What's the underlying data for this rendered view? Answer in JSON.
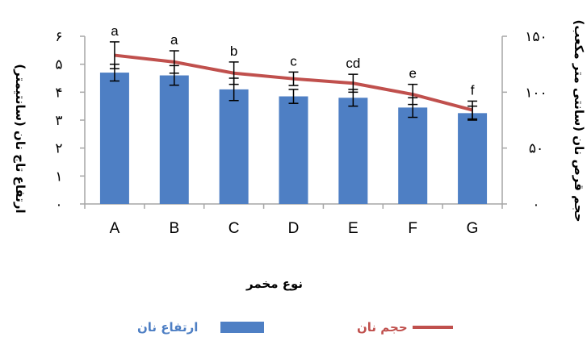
{
  "chart_data": {
    "type": "bar",
    "categories": [
      "A",
      "B",
      "C",
      "D",
      "E",
      "F",
      "G"
    ],
    "series": [
      {
        "name": "ارتفاع نان",
        "type": "bar",
        "axis": "left",
        "color": "#4E7FC4",
        "values": [
          4.7,
          4.6,
          4.1,
          3.85,
          3.8,
          3.45,
          3.25
        ],
        "errors": [
          0.3,
          0.35,
          0.4,
          0.25,
          0.3,
          0.35,
          0.25
        ]
      },
      {
        "name": "حجم نان",
        "type": "line",
        "axis": "right",
        "color": "#C0504D",
        "values": [
          133,
          127,
          117,
          112,
          108,
          98,
          84
        ],
        "errors": [
          12,
          10,
          10,
          6,
          8,
          9,
          8
        ]
      }
    ],
    "significance_letters": [
      "a",
      "a",
      "b",
      "c",
      "cd",
      "e",
      "f"
    ],
    "xlabel": "نوع مخمر",
    "ylabel_left": "ارتفاع تاج نان (سانتیمتر)",
    "ylabel_right": "حجم قرص نان (سانتی متر مکعب)",
    "left_axis": {
      "ylim": [
        0,
        6
      ],
      "ticks": [
        "۰",
        "۱",
        "۲",
        "۳",
        "۴",
        "۵",
        "۶"
      ]
    },
    "right_axis": {
      "ylim": [
        0,
        150
      ],
      "ticks": [
        "۰",
        "۵۰",
        "۱۰۰",
        "۱۵۰"
      ]
    },
    "grid": false,
    "legend_position": "bottom"
  },
  "legend": {
    "bar_label": "ارتفاع نان",
    "line_label": "حجم نان",
    "bar_color": "#4E7FC4",
    "line_color": "#C0504D"
  }
}
